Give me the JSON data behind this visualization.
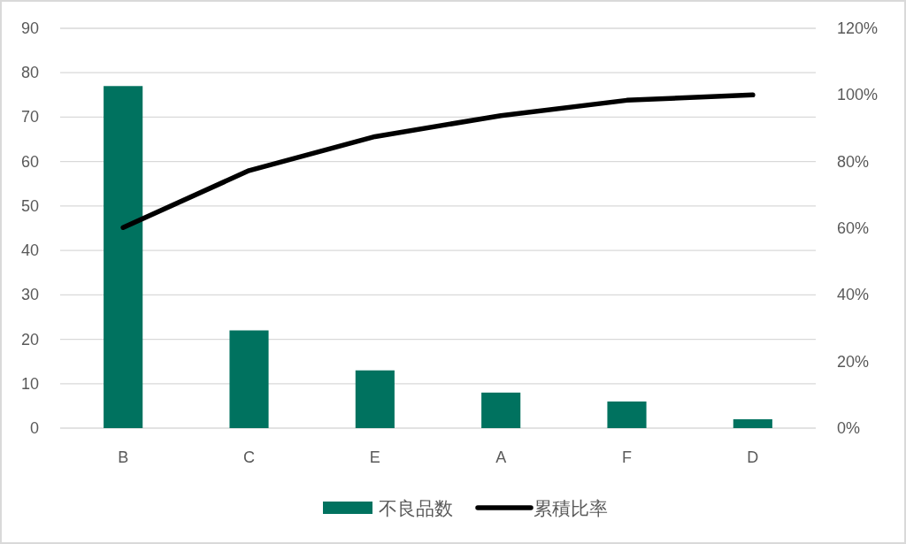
{
  "chart_data": {
    "type": "bar",
    "categories": [
      "B",
      "C",
      "E",
      "A",
      "F",
      "D"
    ],
    "series": [
      {
        "name": "不良品数",
        "color": "#00725f",
        "values": [
          77,
          22,
          13,
          8,
          6,
          2
        ]
      },
      {
        "name": "累積比率",
        "type": "line",
        "axis": "y2",
        "color": "#000000",
        "values": [
          60.2,
          77.3,
          87.5,
          93.8,
          98.4,
          100
        ]
      }
    ],
    "ylim": [
      0,
      90
    ],
    "yticks": [
      0,
      10,
      20,
      30,
      40,
      50,
      60,
      70,
      80,
      90
    ],
    "y2lim": [
      0,
      120
    ],
    "y2ticks": [
      {
        "value": 0,
        "label": "0%"
      },
      {
        "value": 20,
        "label": "20%"
      },
      {
        "value": 40,
        "label": "40%"
      },
      {
        "value": 60,
        "label": "60%"
      },
      {
        "value": 80,
        "label": "80%"
      },
      {
        "value": 100,
        "label": "100%"
      },
      {
        "value": 120,
        "label": "120%"
      }
    ],
    "grid": "y",
    "legend": "bottom"
  }
}
